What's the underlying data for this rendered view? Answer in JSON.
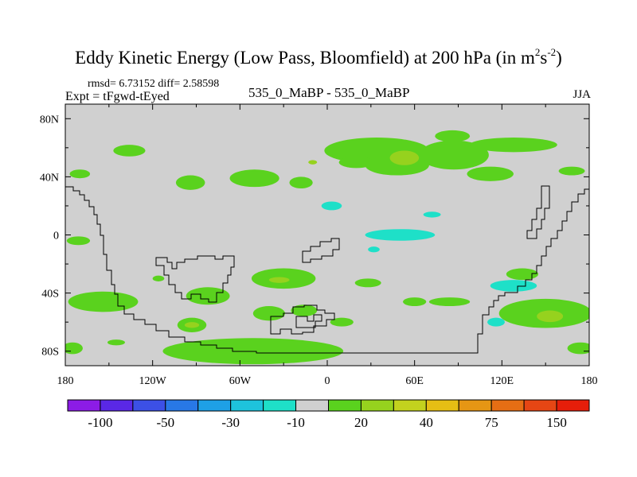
{
  "header": {
    "title_main": "Eddy Kinetic Energy (Low Pass, Bloomfield) at 200 hPa (in m",
    "title_sup1": "2",
    "title_mid": "s",
    "title_sup2": "-2",
    "title_end": ")",
    "stats": "rmsd= 6.73152 diff= 2.58598",
    "experiment": "Expt = tFgwd-tEyed",
    "case_label": "535_0_MaBP - 535_0_MaBP",
    "season": "JJA"
  },
  "chart_data": {
    "type": "contour-map",
    "projection": "cylindrical-equidistant",
    "background_color": "#d0d0d0",
    "xlim": [
      -180,
      180
    ],
    "ylim": [
      -90,
      90
    ],
    "x_ticks": [
      {
        "value": -180,
        "label": "180"
      },
      {
        "value": -120,
        "label": "120W"
      },
      {
        "value": -60,
        "label": "60W"
      },
      {
        "value": 0,
        "label": "0"
      },
      {
        "value": 60,
        "label": "60E"
      },
      {
        "value": 120,
        "label": "120E"
      },
      {
        "value": 180,
        "label": "180"
      }
    ],
    "y_ticks": [
      {
        "value": 80,
        "label": "80N"
      },
      {
        "value": 40,
        "label": "40N"
      },
      {
        "value": 0,
        "label": "0"
      },
      {
        "value": -40,
        "label": "40S"
      },
      {
        "value": -80,
        "label": "80S"
      }
    ],
    "colorbar": {
      "colors": [
        "#8c1ce6",
        "#5a28e6",
        "#3c50e6",
        "#2878e6",
        "#1ea0e6",
        "#1ec3dc",
        "#1ee0c8",
        "#d0d0d0",
        "#5ad21e",
        "#96d21e",
        "#c3d21e",
        "#e6be14",
        "#e69614",
        "#e66e14",
        "#e64614",
        "#e61e0a"
      ],
      "labels": [
        {
          "boundary": 1,
          "text": "-100"
        },
        {
          "boundary": 3,
          "text": "-50"
        },
        {
          "boundary": 5,
          "text": "-30"
        },
        {
          "boundary": 7,
          "text": "-10"
        },
        {
          "boundary": 9,
          "text": "20"
        },
        {
          "boundary": 11,
          "text": "40"
        },
        {
          "boundary": 13,
          "text": "75"
        },
        {
          "boundary": 15,
          "text": "150"
        }
      ]
    },
    "regions": [
      {
        "lon": -136,
        "lat": 58,
        "rlon": 11,
        "rlat": 4,
        "level": "green"
      },
      {
        "lon": -170,
        "lat": 42,
        "rlon": 7,
        "rlat": 3,
        "level": "green"
      },
      {
        "lon": -94,
        "lat": 36,
        "rlon": 10,
        "rlat": 5,
        "level": "green"
      },
      {
        "lon": -50,
        "lat": 39,
        "rlon": 17,
        "rlat": 6,
        "level": "green"
      },
      {
        "lon": -18,
        "lat": 36,
        "rlon": 8,
        "rlat": 4,
        "level": "green"
      },
      {
        "lon": 34,
        "lat": 58,
        "rlon": 36,
        "rlat": 9,
        "level": "green"
      },
      {
        "lon": 87,
        "lat": 55,
        "rlon": 24,
        "rlat": 10,
        "level": "green"
      },
      {
        "lon": 48,
        "lat": 48,
        "rlon": 22,
        "rlat": 7,
        "level": "green"
      },
      {
        "lon": 128,
        "lat": 62,
        "rlon": 30,
        "rlat": 5,
        "level": "green"
      },
      {
        "lon": 86,
        "lat": 68,
        "rlon": 12,
        "rlat": 4,
        "level": "green"
      },
      {
        "lon": 112,
        "lat": 42,
        "rlon": 16,
        "rlat": 5,
        "level": "green"
      },
      {
        "lon": 168,
        "lat": 44,
        "rlon": 9,
        "rlat": 3,
        "level": "green"
      },
      {
        "lon": 20,
        "lat": 50,
        "rlon": 12,
        "rlat": 4,
        "level": "green"
      },
      {
        "lon": -154,
        "lat": -46,
        "rlon": 24,
        "rlat": 7,
        "level": "green"
      },
      {
        "lon": -82,
        "lat": -42,
        "rlon": 15,
        "rlat": 6,
        "level": "green"
      },
      {
        "lon": -93,
        "lat": -62,
        "rlon": 10,
        "rlat": 5,
        "level": "green"
      },
      {
        "lon": -30,
        "lat": -30,
        "rlon": 22,
        "rlat": 7,
        "level": "green"
      },
      {
        "lon": -40,
        "lat": -54,
        "rlon": 11,
        "rlat": 5,
        "level": "green"
      },
      {
        "lon": -16,
        "lat": -52,
        "rlon": 9,
        "rlat": 4,
        "level": "green"
      },
      {
        "lon": 10,
        "lat": -60,
        "rlon": 8,
        "rlat": 3,
        "level": "green"
      },
      {
        "lon": -51,
        "lat": -80,
        "rlon": 62,
        "rlat": 9,
        "level": "green"
      },
      {
        "lon": -175,
        "lat": -78,
        "rlon": 7,
        "rlat": 4,
        "level": "green"
      },
      {
        "lon": 28,
        "lat": -33,
        "rlon": 9,
        "rlat": 3,
        "level": "green"
      },
      {
        "lon": 60,
        "lat": -46,
        "rlon": 8,
        "rlat": 3,
        "level": "green"
      },
      {
        "lon": 84,
        "lat": -46,
        "rlon": 14,
        "rlat": 3,
        "level": "green"
      },
      {
        "lon": 150,
        "lat": -54,
        "rlon": 32,
        "rlat": 10,
        "level": "green"
      },
      {
        "lon": 134,
        "lat": -27,
        "rlon": 11,
        "rlat": 4,
        "level": "green"
      },
      {
        "lon": 174,
        "lat": -78,
        "rlon": 9,
        "rlat": 4,
        "level": "green"
      },
      {
        "lon": -171,
        "lat": -4,
        "rlon": 8,
        "rlat": 3,
        "level": "green"
      },
      {
        "lon": -145,
        "lat": -74,
        "rlon": 6,
        "rlat": 2,
        "level": "green"
      },
      {
        "lon": -116,
        "lat": -30,
        "rlon": 4,
        "rlat": 2,
        "level": "green"
      },
      {
        "lon": 53,
        "lat": 53,
        "rlon": 10,
        "rlat": 5,
        "level": "lime"
      },
      {
        "lon": -33,
        "lat": -31,
        "rlon": 7,
        "rlat": 2,
        "level": "lime"
      },
      {
        "lon": -93,
        "lat": -62,
        "rlon": 5,
        "rlat": 2,
        "level": "lime"
      },
      {
        "lon": 153,
        "lat": -56,
        "rlon": 9,
        "rlat": 4,
        "level": "lime"
      },
      {
        "lon": -10,
        "lat": 50,
        "rlon": 3,
        "rlat": 1.5,
        "level": "lime"
      },
      {
        "lon": 3,
        "lat": 20,
        "rlon": 7,
        "rlat": 3,
        "level": "cyan"
      },
      {
        "lon": 50,
        "lat": 0,
        "rlon": 24,
        "rlat": 4,
        "level": "cyan"
      },
      {
        "lon": 72,
        "lat": 14,
        "rlon": 6,
        "rlat": 2,
        "level": "cyan"
      },
      {
        "lon": 128,
        "lat": -35,
        "rlon": 16,
        "rlat": 4,
        "level": "cyan"
      },
      {
        "lon": 116,
        "lat": -60,
        "rlon": 6,
        "rlat": 3,
        "level": "cyan"
      },
      {
        "lon": 32,
        "lat": -10,
        "rlon": 4,
        "rlat": 2,
        "level": "cyan"
      }
    ]
  }
}
